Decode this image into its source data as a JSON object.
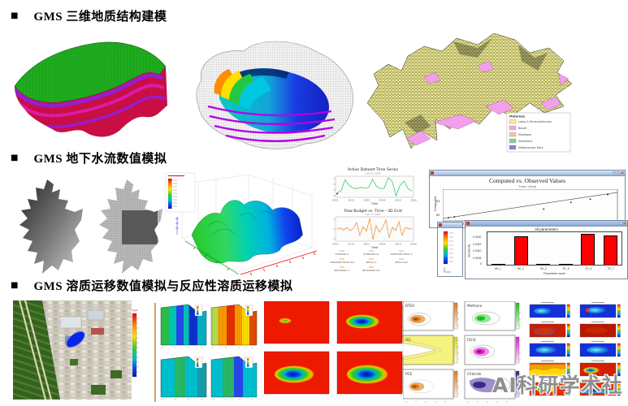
{
  "slide": {
    "background": "#ffffff"
  },
  "headings": [
    {
      "bullet": "■",
      "title": "GMS 三维地质结构建模"
    },
    {
      "bullet": "■",
      "title": "GMS 地下水流数值模拟"
    },
    {
      "bullet": "■",
      "title": "GMS 溶质运移数值模拟与反应性溶质运移模拟"
    }
  ],
  "geology": {
    "materials_legend": {
      "title": "Materials",
      "items": [
        {
          "label": "Loess & Terrace/alluvium",
          "color": "#f0ec9a"
        },
        {
          "label": "Basalt",
          "color": "#f2a8e8"
        },
        {
          "label": "Mudstone",
          "color": "#f0c89a"
        },
        {
          "label": "Sandstone",
          "color": "#8ec89e"
        },
        {
          "label": "Metamorphic Rock",
          "color": "#9a7ad0"
        }
      ]
    }
  },
  "chart_data": [
    {
      "id": "active_dataset_time_series",
      "type": "line",
      "title": "Active Dataset Time Series",
      "subtitle": "Cell id: 5049",
      "xlabel": "Time",
      "x_ticks": [
        "2011",
        "2012",
        "2013",
        "2014",
        "2015",
        "2016"
      ],
      "line_color": "#55cc77",
      "y": [
        0.22,
        0.3,
        0.78,
        0.55,
        0.42,
        0.4,
        0.46,
        0.42,
        0.45,
        0.8,
        0.5,
        0.4,
        0.42,
        0.86,
        0.7,
        0.1,
        0.55,
        0.72,
        0.4,
        0.3
      ]
    },
    {
      "id": "flow_budget_vs_time",
      "type": "line",
      "title": "Flow Budget vs. Time - 3D Grid",
      "subtitle": "Cell id: 5047",
      "xlabel": "Time",
      "x_ticks": [
        "2011",
        "2012",
        "2013",
        "2014",
        "2015",
        "2016"
      ],
      "line_color": "#ee8822",
      "y": [
        0,
        0.06,
        -0.05,
        0.1,
        -0.08,
        0.05,
        0.32,
        -0.3,
        0.12,
        -0.1,
        0.52,
        -0.5,
        0.18,
        -0.15,
        0.08,
        0.45,
        -0.42,
        0.1,
        -0.06,
        0.36,
        -0.3,
        0.08,
        0.03,
        0
      ],
      "legend": [
        "STORAGE In",
        "STORAGE Out",
        "CONSTANT HEAD In",
        "CONSTANT HEAD Out",
        "WELLS In",
        "WELLS Out",
        "RECHARGE In",
        "RECHARGE Out"
      ]
    },
    {
      "id": "computed_vs_observed",
      "type": "scatter",
      "title": "Computed vs. Observed Values",
      "subtitle": "Trans. Head",
      "ylabel": "Computed",
      "x_ticks": [
        "77",
        "78"
      ],
      "y_ticks": [
        "83",
        "80"
      ],
      "xlim": [
        77,
        86
      ],
      "ylim": [
        79,
        86
      ],
      "points_x": [
        77.3,
        77.6,
        82.2,
        83.6,
        84.6,
        85.5
      ],
      "points_y": [
        79.7,
        79.9,
        81.6,
        83.1,
        83.8,
        84.8
      ],
      "line": {
        "x": [
          77,
          86
        ],
        "y": [
          79.5,
          85.3
        ]
      }
    },
    {
      "id": "all_parameters_sensitivity",
      "type": "bar",
      "title": "All parameters",
      "xlabel": "Parameter name",
      "ylabel": "Sensitivity",
      "categories": [
        "HK_1",
        "HK_2",
        "HK_3",
        "SY_5",
        "SY_6",
        "SY_7"
      ],
      "values": [
        2e-05,
        0.0021,
        6e-05,
        2e-05,
        0.00226,
        0.00212
      ],
      "y_ticks": [
        "0.0020",
        "0.0015",
        "0.0010",
        "0.0005",
        "0"
      ],
      "ylim": [
        0,
        0.0025
      ],
      "bar_color": "#ff0000"
    }
  ],
  "transport": {
    "site_colorbar_label": "mg/L",
    "contour_panels": [
      {
        "label": "BTEX",
        "color": "#e07820"
      },
      {
        "label": "Methane",
        "color": "#22bb22"
      },
      {
        "label": "DO",
        "color": "#f0ec60"
      },
      {
        "label": "FE(II)",
        "color": "#dd22cc"
      },
      {
        "label": "PCE",
        "color": "#e07820"
      },
      {
        "label": "Chloride",
        "color": "#5a4a9a"
      }
    ]
  },
  "watermark": "AI科研学术社"
}
